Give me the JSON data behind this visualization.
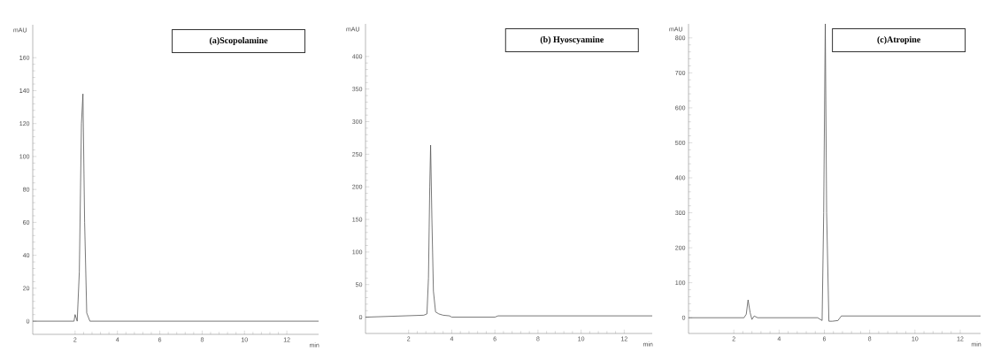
{
  "chart_data": [
    {
      "type": "line",
      "title": "(a)Scopolamine",
      "xlabel": "min",
      "ylabel": "mAU",
      "xlim": [
        0,
        13.5
      ],
      "ylim": [
        -8,
        180
      ],
      "xticks": [
        2,
        4,
        6,
        8,
        10,
        12
      ],
      "yticks": [
        0,
        20,
        40,
        60,
        80,
        100,
        120,
        140,
        160
      ],
      "grid": false,
      "marker": "none",
      "line_style": "solid",
      "series": [
        {
          "color": "#555555",
          "x": [
            0,
            1.95,
            2.0,
            2.1,
            2.2,
            2.3,
            2.37,
            2.45,
            2.55,
            2.7,
            3.6,
            13.5
          ],
          "values": [
            0,
            0,
            4,
            0,
            30,
            120,
            138,
            60,
            5,
            0,
            0,
            0
          ]
        }
      ]
    },
    {
      "type": "line",
      "title": "(b) Hyoscyamine",
      "xlabel": "min",
      "ylabel": "mAU",
      "xlim": [
        0,
        13.3
      ],
      "ylim": [
        -25,
        450
      ],
      "xticks": [
        2,
        4,
        6,
        8,
        10,
        12
      ],
      "yticks": [
        0,
        50,
        100,
        150,
        200,
        250,
        300,
        350,
        400
      ],
      "grid": false,
      "marker": "none",
      "line_style": "solid",
      "series": [
        {
          "color": "#555555",
          "x": [
            0,
            2.7,
            2.85,
            2.92,
            2.98,
            3.02,
            3.08,
            3.15,
            3.25,
            3.4,
            3.6,
            3.9,
            4.0,
            6.0,
            6.15,
            13.3
          ],
          "values": [
            0,
            3,
            5,
            60,
            200,
            264,
            150,
            40,
            8,
            5,
            3,
            2,
            0,
            0,
            2,
            2
          ]
        }
      ]
    },
    {
      "type": "line",
      "title": "(c)Atropine",
      "xlabel": "min",
      "ylabel": "mAU",
      "xlim": [
        0,
        12.9
      ],
      "ylim": [
        -45,
        840
      ],
      "xticks": [
        2,
        4,
        6,
        8,
        10,
        12
      ],
      "yticks": [
        0,
        100,
        200,
        300,
        400,
        500,
        600,
        700,
        800
      ],
      "grid": false,
      "marker": "none",
      "line_style": "solid",
      "series": [
        {
          "color": "#555555",
          "x": [
            0,
            2.45,
            2.55,
            2.63,
            2.72,
            2.8,
            2.9,
            3.05,
            5.7,
            5.9,
            5.97,
            6.04,
            6.1,
            6.2,
            6.35,
            6.6,
            6.75,
            12.9
          ],
          "values": [
            0,
            0,
            10,
            51,
            15,
            -5,
            5,
            0,
            0,
            -8,
            300,
            840,
            300,
            -10,
            -10,
            -8,
            5,
            5
          ]
        }
      ]
    }
  ]
}
